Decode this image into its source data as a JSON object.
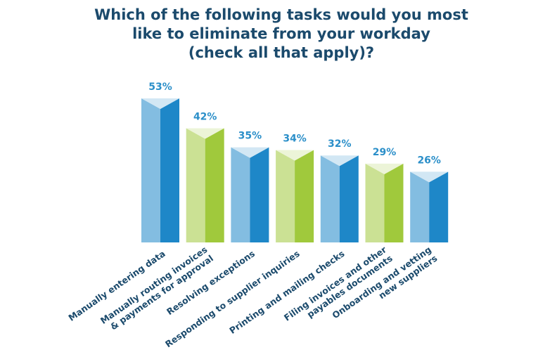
{
  "chart_data": {
    "type": "bar",
    "title": [
      "Which of the following tasks would you most",
      "like to eliminate from your workday",
      "(check all that apply)?"
    ],
    "categories": [
      "Manually entering data",
      "Manually routing invoices\n& payments for approval",
      "Resolving exceptions",
      "Responding to supplier inquiries",
      "Printing and mailing checks",
      "Filing invoices and other\npayables documents",
      "Onboarding and vetting\nnew suppliers"
    ],
    "values": [
      53,
      42,
      35,
      34,
      32,
      29,
      26
    ],
    "value_labels": [
      "53%",
      "42%",
      "35%",
      "34%",
      "32%",
      "29%",
      "26%"
    ],
    "colors": [
      "#1e87c8",
      "#a0c93c",
      "#1e87c8",
      "#a0c93c",
      "#1e87c8",
      "#a0c93c",
      "#1e87c8"
    ]
  }
}
